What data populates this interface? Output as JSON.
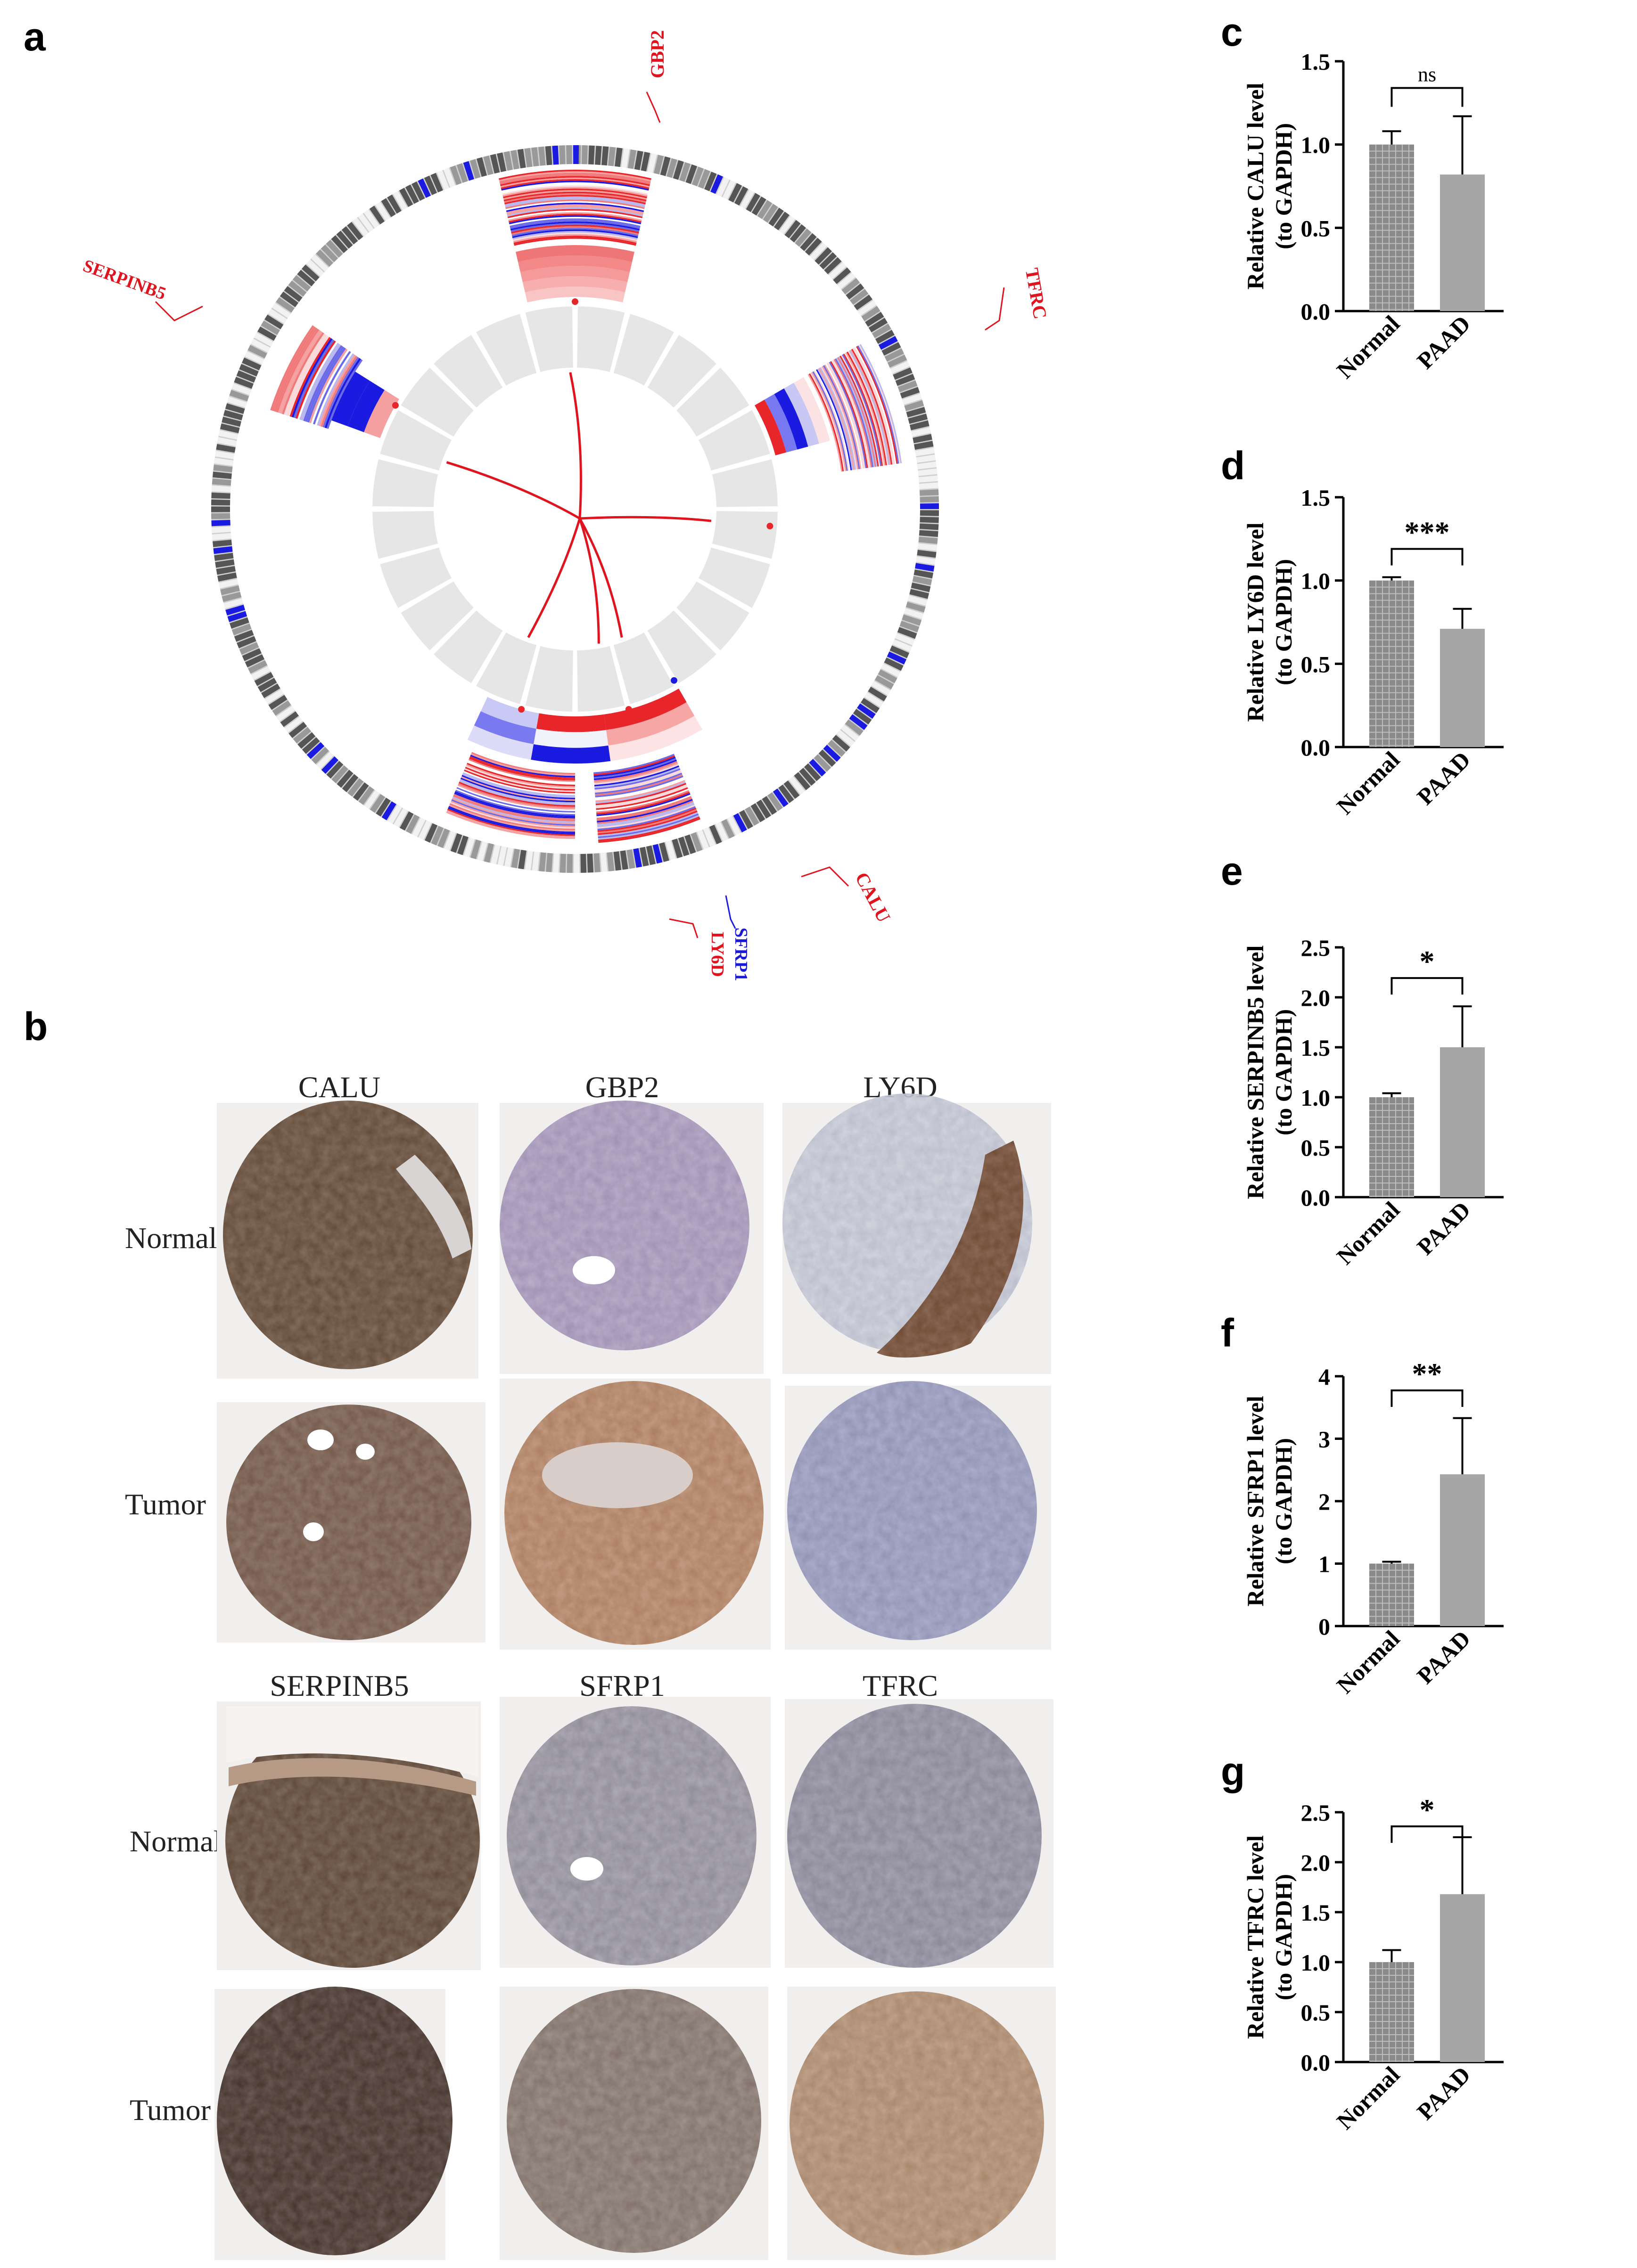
{
  "figure": {
    "panel_labels": {
      "a": "a",
      "b": "b",
      "c": "c",
      "d": "d",
      "e": "e",
      "f": "f",
      "g": "g"
    }
  },
  "circos": {
    "gene_labels": [
      {
        "name": "GBP2",
        "color": "#e0141e"
      },
      {
        "name": "TFRC",
        "color": "#e0141e"
      },
      {
        "name": "CALU",
        "color": "#e0141e"
      },
      {
        "name": "SFRP1",
        "color": "#1a1ad6"
      },
      {
        "name": "LY6D",
        "color": "#e0141e"
      },
      {
        "name": "SERPINB5",
        "color": "#e0141e"
      }
    ],
    "colors": {
      "red": "#e8262a",
      "blue": "#1a1ae0",
      "pink": "#f5a0a0",
      "grey": "#e6e6e6",
      "link": "#e0141e"
    }
  },
  "histology": {
    "row_labels": {
      "normal": "Normal",
      "tumor": "Tumor"
    },
    "top_genes": [
      "CALU",
      "GBP2",
      "LY6D"
    ],
    "bottom_genes": [
      "SERPINB5",
      "SFRP1",
      "TFRC"
    ],
    "stain_colors": {
      "brown": "#6e4a32",
      "light_brown": "#a87c5e",
      "purple": "#9d8fb0",
      "blue_grey": "#8d90b0",
      "background": "#f1efee"
    }
  },
  "chart_data": [
    {
      "panel": "c",
      "type": "bar",
      "categories": [
        "Normal",
        "PAAD"
      ],
      "values": [
        1.0,
        0.82
      ],
      "errors": [
        0.08,
        0.35
      ],
      "ylabel_line1": "Relative  CALU level",
      "ylabel_line2": "(to GAPDH)",
      "ylim": [
        0,
        1.5
      ],
      "yticks": [
        "0.0",
        "0.5",
        "1.0",
        "1.5"
      ],
      "ytick_values": [
        0,
        0.5,
        1.0,
        1.5
      ],
      "significance": "ns"
    },
    {
      "panel": "d",
      "type": "bar",
      "categories": [
        "Normal",
        "PAAD"
      ],
      "values": [
        1.0,
        0.71
      ],
      "errors": [
        0.02,
        0.12
      ],
      "ylabel_line1": "Relative LY6D level",
      "ylabel_line2": "(to GAPDH)",
      "ylim": [
        0,
        1.5
      ],
      "yticks": [
        "0.0",
        "0.5",
        "1.0",
        "1.5"
      ],
      "ytick_values": [
        0,
        0.5,
        1.0,
        1.5
      ],
      "significance": "***"
    },
    {
      "panel": "e",
      "type": "bar",
      "categories": [
        "Normal",
        "PAAD"
      ],
      "values": [
        1.0,
        1.5
      ],
      "errors": [
        0.04,
        0.41
      ],
      "ylabel_line1": "Relative SERPINB5 level",
      "ylabel_line2": "(to GAPDH)",
      "ylim": [
        0,
        2.5
      ],
      "yticks": [
        "0.0",
        "0.5",
        "1.0",
        "1.5",
        "2.0",
        "2.5"
      ],
      "ytick_values": [
        0,
        0.5,
        1.0,
        1.5,
        2.0,
        2.5
      ],
      "significance": "*"
    },
    {
      "panel": "f",
      "type": "bar",
      "categories": [
        "Normal",
        "PAAD"
      ],
      "values": [
        1.0,
        2.43
      ],
      "errors": [
        0.03,
        0.9
      ],
      "ylabel_line1": "Relative SFRP1 level",
      "ylabel_line2": "(to GAPDH)",
      "ylim": [
        0,
        4
      ],
      "yticks": [
        "0",
        "1",
        "2",
        "3",
        "4"
      ],
      "ytick_values": [
        0,
        1,
        2,
        3,
        4
      ],
      "significance": "**"
    },
    {
      "panel": "g",
      "type": "bar",
      "categories": [
        "Normal",
        "PAAD"
      ],
      "values": [
        1.0,
        1.68
      ],
      "errors": [
        0.12,
        0.57
      ],
      "ylabel_line1": "Relative TFRC level",
      "ylabel_line2": "(to GAPDH)",
      "ylim": [
        0,
        2.5
      ],
      "yticks": [
        "0.0",
        "0.5",
        "1.0",
        "1.5",
        "2.0",
        "2.5"
      ],
      "ytick_values": [
        0,
        0.5,
        1.0,
        1.5,
        2.0,
        2.5
      ],
      "significance": "*"
    }
  ]
}
